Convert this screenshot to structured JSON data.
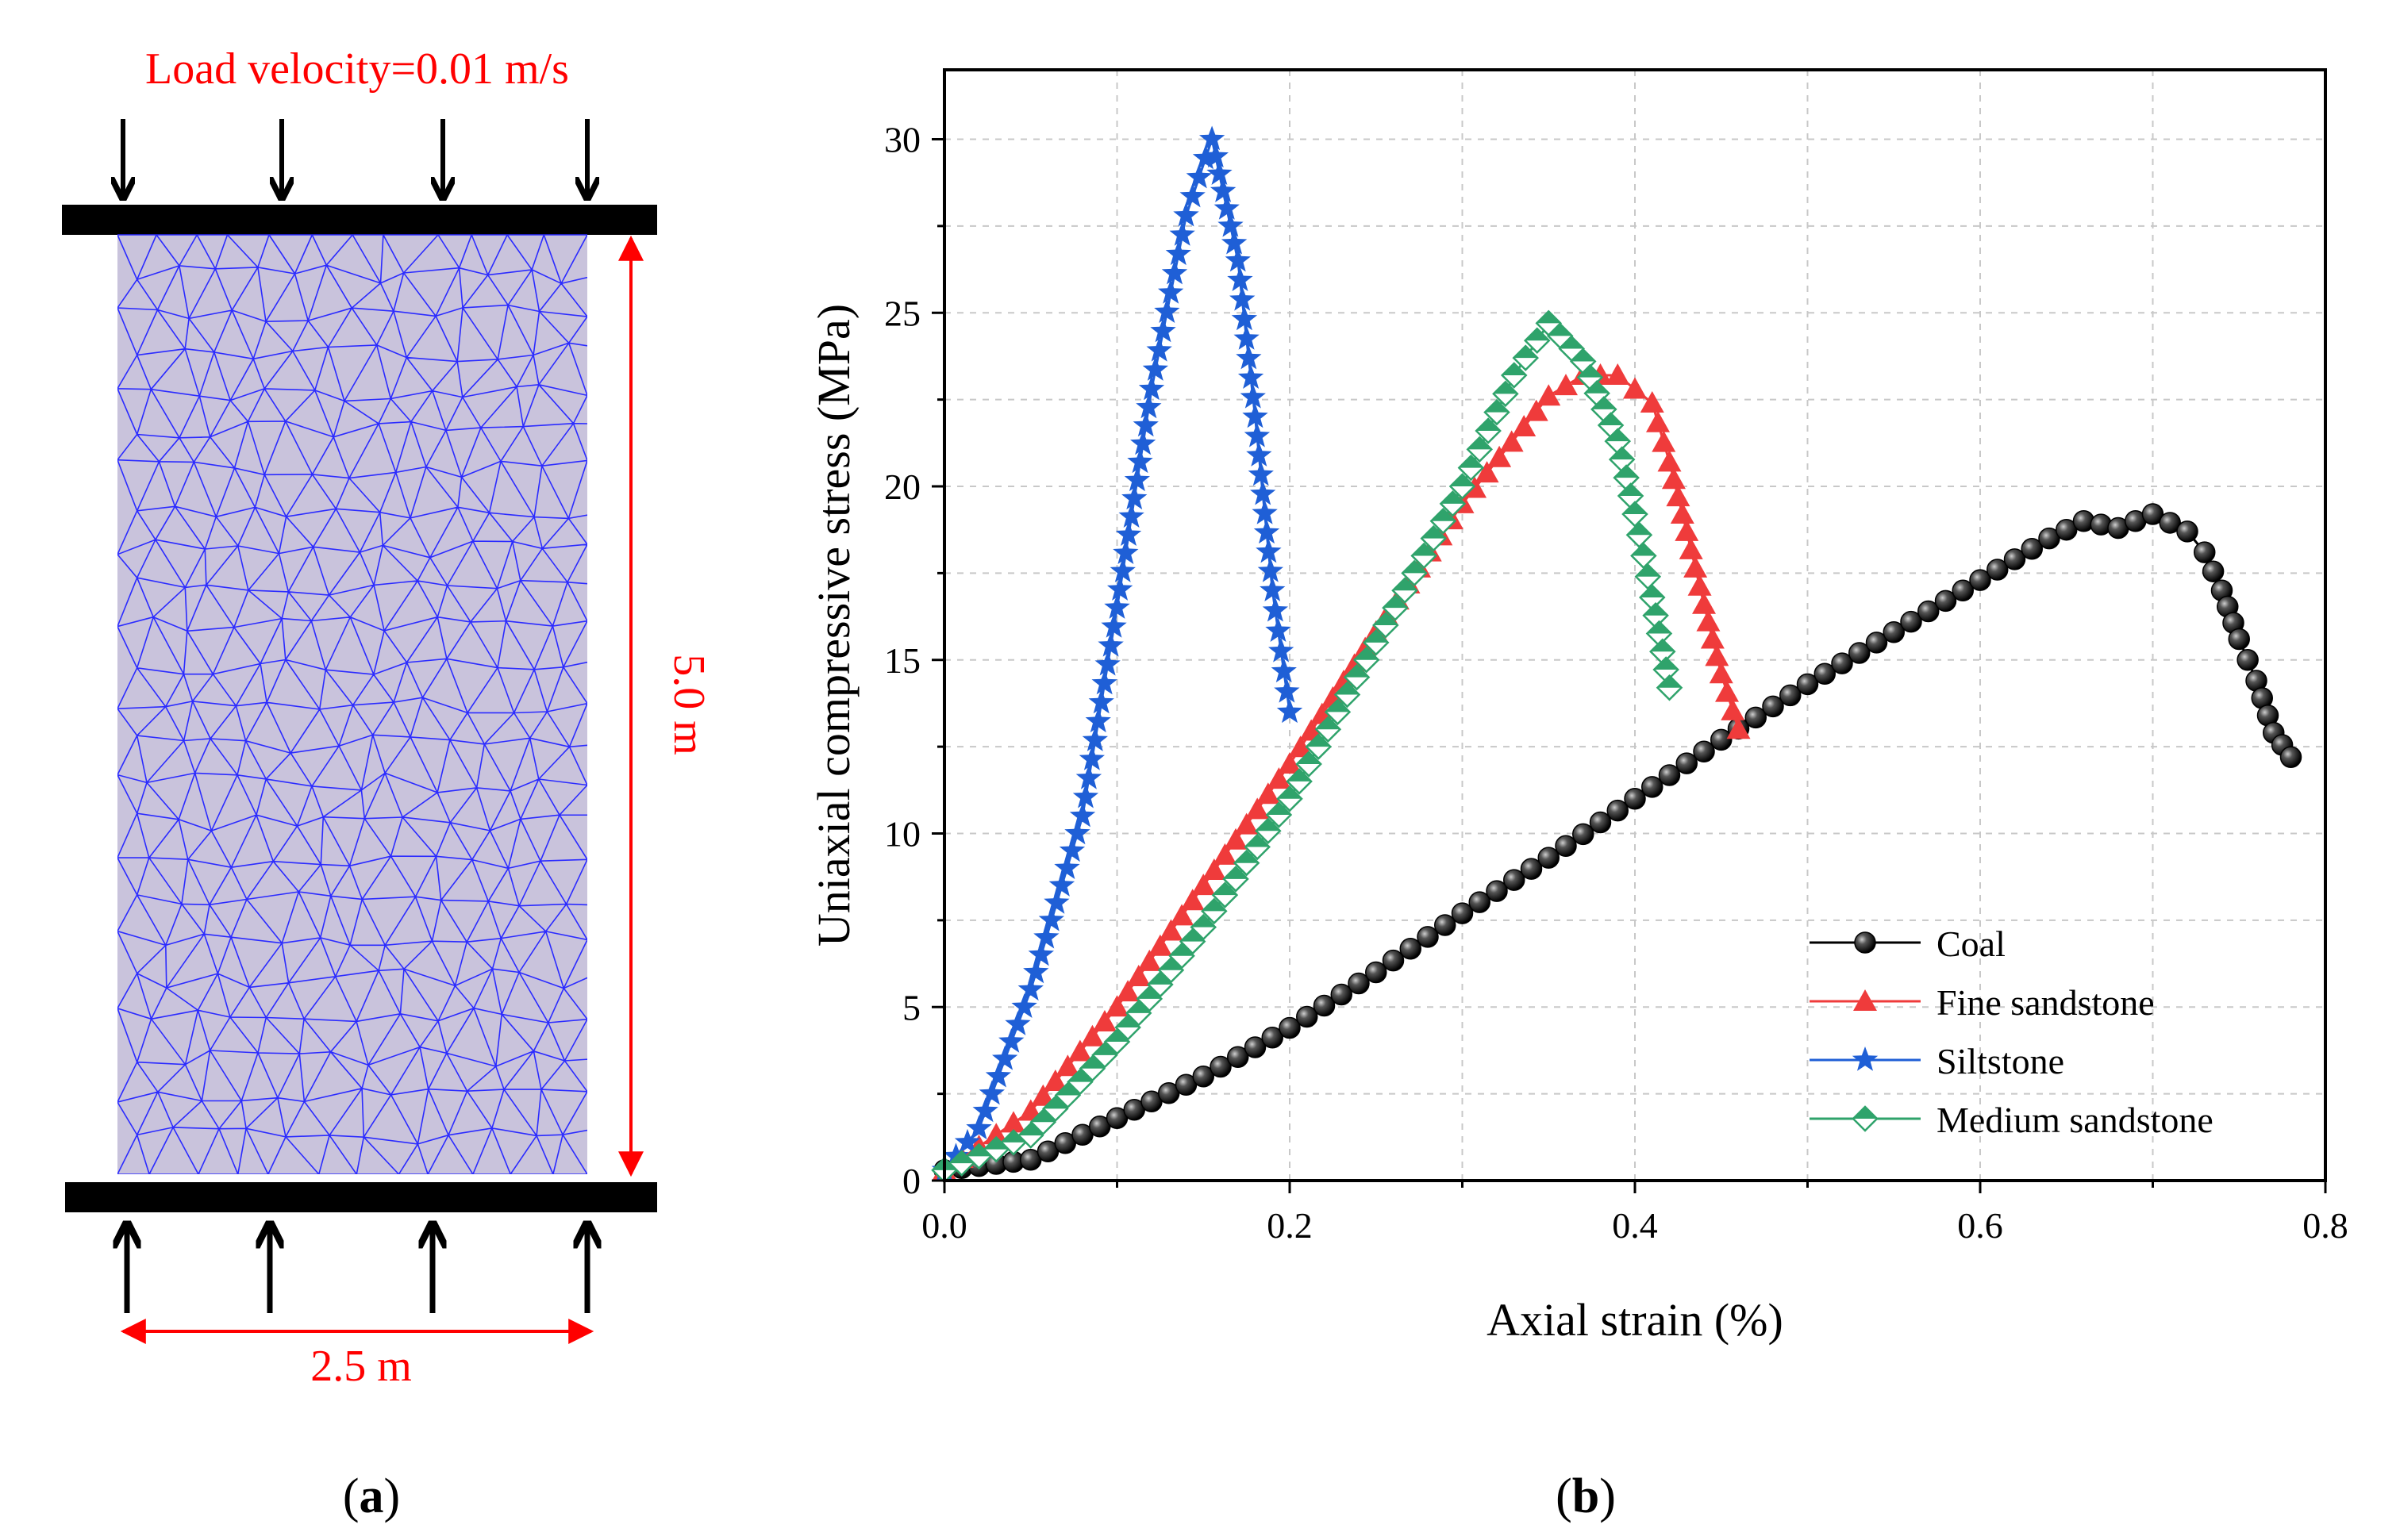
{
  "panel_a": {
    "load_label": "Load velocity=0.01 m/s",
    "height_label": "5.0 m",
    "width_label": "2.5 m",
    "caption_prefix": "(",
    "caption_letter": "a",
    "caption_suffix": ")"
  },
  "panel_b": {
    "caption_prefix": "(",
    "caption_letter": "b",
    "caption_suffix": ")"
  },
  "chart_data": {
    "type": "line",
    "xlabel": "Axial strain (%)",
    "ylabel": "Uniaxial compressive stress (MPa)",
    "xlim": [
      0,
      0.8
    ],
    "ylim": [
      0,
      32
    ],
    "xticks": [
      0.0,
      0.2,
      0.4,
      0.6,
      0.8
    ],
    "xtick_labels": [
      "0.0",
      "0.2",
      "0.4",
      "0.6",
      "0.8"
    ],
    "yticks": [
      0,
      5,
      10,
      15,
      20,
      25,
      30
    ],
    "ytick_labels": [
      "0",
      "5",
      "10",
      "15",
      "20",
      "25",
      "30"
    ],
    "grid": true,
    "legend_position": "bottom-right",
    "series": [
      {
        "name": "Coal",
        "color": "#000000",
        "marker": "sphere",
        "x": [
          0.0,
          0.05,
          0.1,
          0.15,
          0.2,
          0.25,
          0.3,
          0.35,
          0.4,
          0.45,
          0.5,
          0.55,
          0.6,
          0.64,
          0.66,
          0.68,
          0.7,
          0.72,
          0.73,
          0.74,
          0.75,
          0.76,
          0.77,
          0.78
        ],
        "y": [
          0.3,
          0.6,
          1.8,
          3.0,
          4.4,
          6.0,
          7.7,
          9.3,
          11.0,
          12.7,
          14.3,
          15.8,
          17.3,
          18.5,
          19.0,
          18.8,
          19.2,
          18.7,
          18.1,
          17.0,
          15.6,
          14.4,
          12.9,
          12.2
        ]
      },
      {
        "name": "Fine sandstone",
        "color": "#ef3b3b",
        "marker": "triangle",
        "x": [
          0.0,
          0.05,
          0.1,
          0.15,
          0.2,
          0.25,
          0.3,
          0.35,
          0.37,
          0.39,
          0.41,
          0.42,
          0.43,
          0.44,
          0.45,
          0.46
        ],
        "y": [
          0.3,
          2.0,
          5.0,
          8.5,
          12.0,
          15.8,
          19.5,
          22.6,
          23.2,
          23.2,
          22.4,
          20.7,
          18.7,
          16.6,
          14.6,
          13.0
        ]
      },
      {
        "name": "Siltstone",
        "color": "#1f5fd6",
        "marker": "star",
        "x": [
          0.0,
          0.02,
          0.05,
          0.08,
          0.1,
          0.12,
          0.14,
          0.155,
          0.17,
          0.18,
          0.19,
          0.2
        ],
        "y": [
          0.3,
          1.5,
          5.5,
          10.5,
          16.5,
          22.8,
          27.8,
          30.0,
          26.5,
          22.0,
          17.0,
          13.5
        ]
      },
      {
        "name": "Medium sandstone",
        "color": "#2fa36b",
        "marker": "diamond",
        "x": [
          0.0,
          0.05,
          0.1,
          0.15,
          0.2,
          0.25,
          0.3,
          0.33,
          0.35,
          0.37,
          0.39,
          0.4,
          0.41,
          0.42
        ],
        "y": [
          0.3,
          1.3,
          4.0,
          7.3,
          11.0,
          15.5,
          20.0,
          23.2,
          24.7,
          23.6,
          21.3,
          19.2,
          16.8,
          14.2
        ]
      }
    ]
  }
}
